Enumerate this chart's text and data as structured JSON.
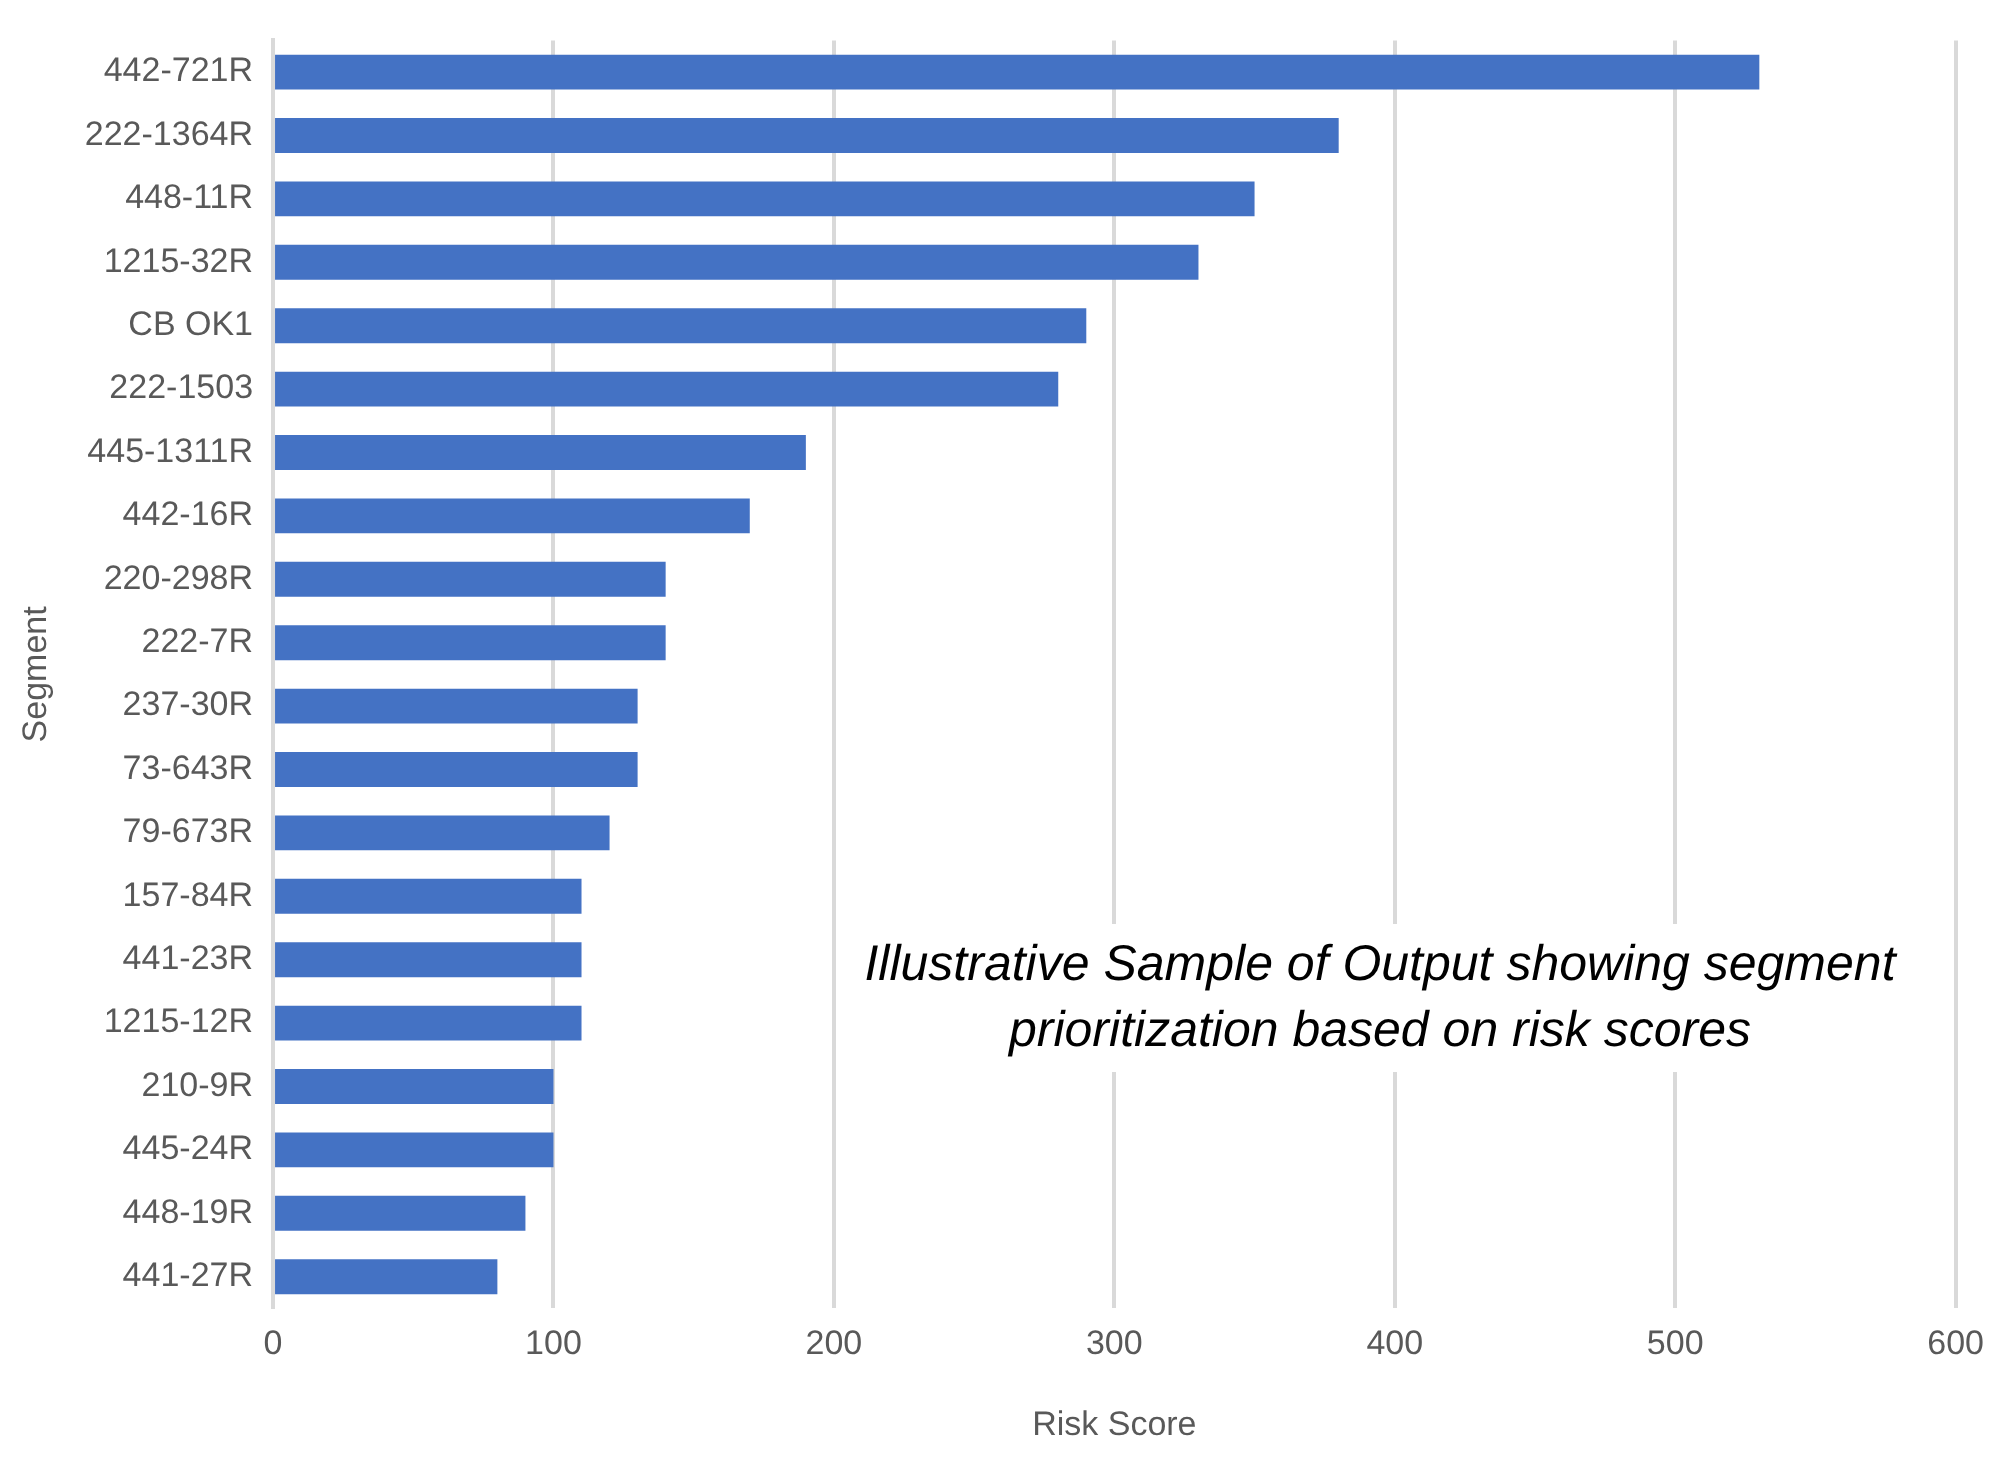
{
  "chart_data": {
    "type": "bar",
    "orientation": "horizontal",
    "xlabel": "Risk Score",
    "ylabel": "Segment",
    "categories": [
      "442-721R",
      "222-1364R",
      "448-11R",
      "1215-32R",
      "CB OK1",
      "222-1503",
      "445-1311R",
      "442-16R",
      "220-298R",
      "222-7R",
      "237-30R",
      "73-643R",
      "79-673R",
      "157-84R",
      "441-23R",
      "1215-12R",
      "210-9R",
      "445-24R",
      "448-19R",
      "441-27R"
    ],
    "values": [
      530,
      380,
      350,
      330,
      290,
      280,
      190,
      170,
      140,
      140,
      130,
      130,
      120,
      110,
      110,
      110,
      100,
      100,
      90,
      80
    ],
    "color": "#4472c4",
    "xlim": [
      0,
      600
    ],
    "xticks": [
      0,
      100,
      200,
      300,
      400,
      500,
      600
    ],
    "grid": "x",
    "legend": false,
    "annotations": [
      "Illustrative Sample of Output showing segment prioritization based on risk scores"
    ]
  }
}
